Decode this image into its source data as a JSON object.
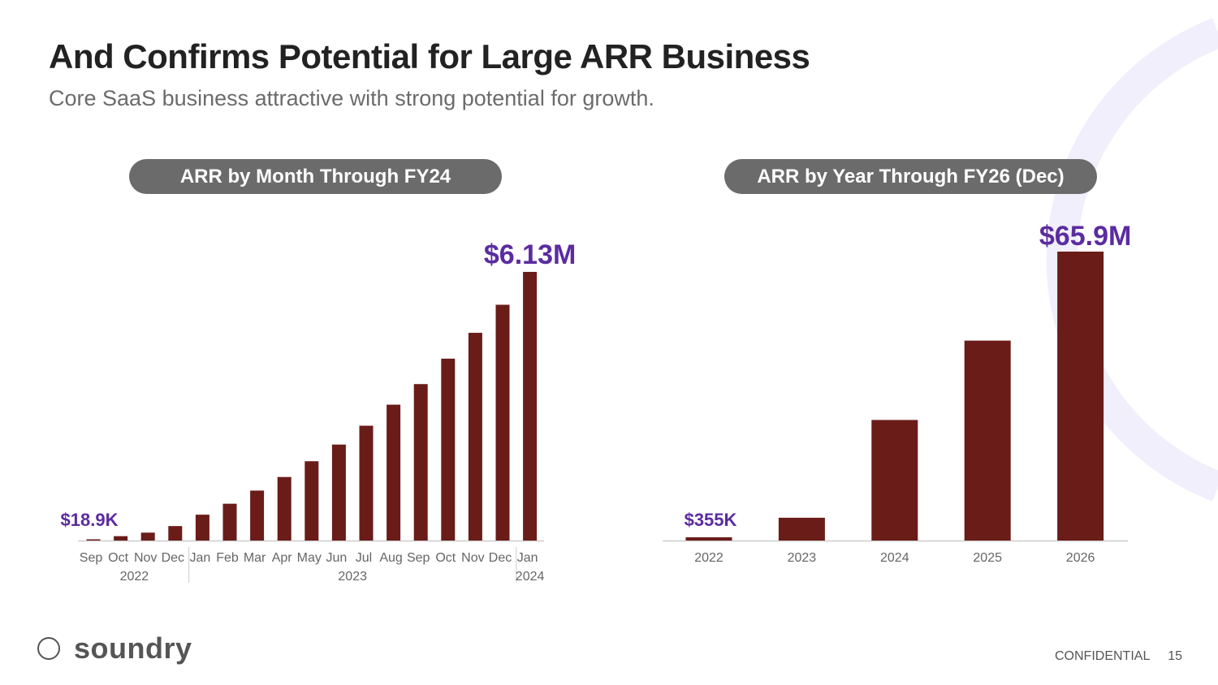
{
  "slide": {
    "title": "And Confirms Potential for Large ARR Business",
    "subtitle": "Core SaaS business attractive with strong potential for growth.",
    "logo_text": "soundry",
    "footer_label": "CONFIDENTIAL",
    "page_number": "15",
    "colors": {
      "bar": "#6a1c19",
      "highlight": "#5b2ca0",
      "pill": "#6b6b6b",
      "text": "#222222"
    }
  },
  "chart_data": [
    {
      "type": "bar",
      "title": "ARR by Month Through FY24",
      "categories": [
        "Sep",
        "Oct",
        "Nov",
        "Dec",
        "Jan",
        "Feb",
        "Mar",
        "Apr",
        "May",
        "Jun",
        "Jul",
        "Aug",
        "Sep",
        "Oct",
        "Nov",
        "Dec",
        "Jan"
      ],
      "year_groups": [
        {
          "label": "2022",
          "count": 4
        },
        {
          "label": "2023",
          "count": 12
        },
        {
          "label": "2024",
          "count": 1
        }
      ],
      "values": [
        0.0189,
        0.1,
        0.18,
        0.33,
        0.59,
        0.84,
        1.14,
        1.45,
        1.81,
        2.19,
        2.62,
        3.1,
        3.57,
        4.15,
        4.74,
        5.38,
        6.13
      ],
      "unit": "$M",
      "ylim": [
        0,
        6.13
      ],
      "annotations": [
        {
          "index": 0,
          "label": "$18.9K"
        },
        {
          "index": 16,
          "label": "$6.13M"
        }
      ]
    },
    {
      "type": "bar",
      "title": "ARR by Year Through FY26 (Dec)",
      "categories": [
        "2022",
        "2023",
        "2024",
        "2025",
        "2026"
      ],
      "values": [
        0.355,
        5.2,
        27.5,
        45.6,
        65.9
      ],
      "unit": "$M",
      "ylim": [
        0,
        65.9
      ],
      "annotations": [
        {
          "index": 0,
          "label": "$355K"
        },
        {
          "index": 4,
          "label": "$65.9M"
        }
      ]
    }
  ]
}
